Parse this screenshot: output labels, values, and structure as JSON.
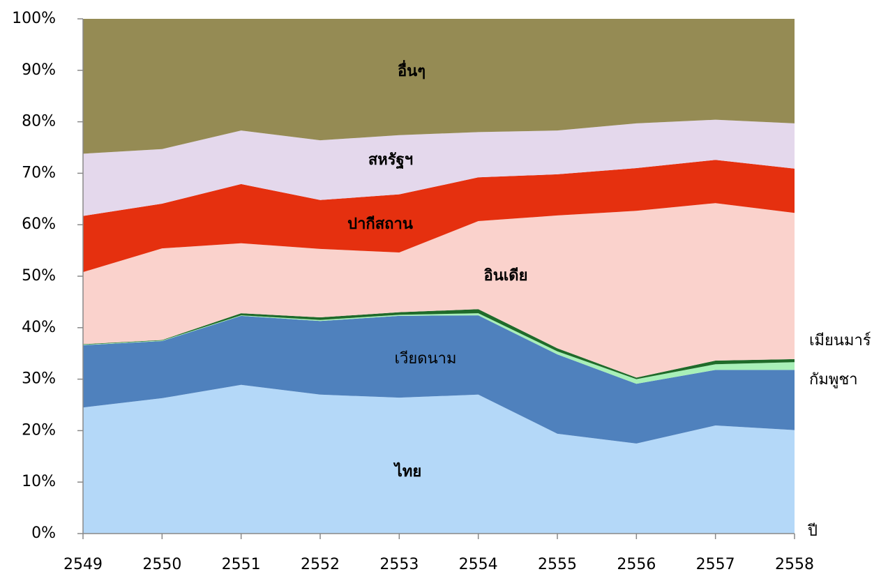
{
  "chart_data": {
    "type": "stacked_area",
    "x_label": "ปี",
    "categories": [
      "2549",
      "2550",
      "2551",
      "2552",
      "2553",
      "2554",
      "2555",
      "2556",
      "2557",
      "2558"
    ],
    "series": [
      {
        "name": "ไทย",
        "color": "#b4d8f8",
        "values": [
          24.5,
          26.3,
          28.9,
          27.0,
          26.4,
          27.0,
          19.4,
          17.5,
          21.0,
          20.1
        ]
      },
      {
        "name": "เวียดนาม",
        "color": "#4f81bd",
        "values": [
          12.1,
          11.1,
          13.4,
          14.3,
          15.9,
          15.4,
          15.4,
          11.6,
          10.8,
          11.7
        ]
      },
      {
        "name": "กัมพูชา",
        "color": "#a8f0b8",
        "values": [
          0.1,
          0.1,
          0.1,
          0.2,
          0.2,
          0.4,
          0.6,
          0.9,
          1.1,
          1.5
        ]
      },
      {
        "name": "เมียนมาร์",
        "color": "#1f6b2a",
        "values": [
          0.1,
          0.1,
          0.4,
          0.5,
          0.5,
          0.8,
          0.6,
          0.3,
          0.7,
          0.6
        ]
      },
      {
        "name": "อินเดีย",
        "color": "#fad2cc",
        "values": [
          14.0,
          17.8,
          13.6,
          13.3,
          11.6,
          17.1,
          25.8,
          32.4,
          30.6,
          28.4
        ]
      },
      {
        "name": "ปากีสถาน",
        "color": "#e5300f",
        "values": [
          10.9,
          8.7,
          11.5,
          9.5,
          11.3,
          8.5,
          8.0,
          8.3,
          8.4,
          8.6
        ]
      },
      {
        "name": "สหรัฐฯ",
        "color": "#e4d8ec",
        "values": [
          12.1,
          10.6,
          10.4,
          11.6,
          11.5,
          8.8,
          8.5,
          8.7,
          7.8,
          8.8
        ]
      },
      {
        "name": "อื่นๆ",
        "color": "#958b54",
        "values": [
          26.2,
          25.3,
          21.7,
          23.6,
          22.6,
          22.0,
          21.7,
          20.3,
          19.6,
          20.3
        ]
      }
    ],
    "ylim": [
      0,
      100
    ],
    "yticks": [
      {
        "value": 0,
        "label": "0%"
      },
      {
        "value": 10,
        "label": "10%"
      },
      {
        "value": 20,
        "label": "20%"
      },
      {
        "value": 30,
        "label": "30%"
      },
      {
        "value": 40,
        "label": "40%"
      },
      {
        "value": 50,
        "label": "50%"
      },
      {
        "value": 60,
        "label": "60%"
      },
      {
        "value": 70,
        "label": "70%"
      },
      {
        "value": 80,
        "label": "80%"
      },
      {
        "value": 90,
        "label": "90%"
      },
      {
        "value": 100,
        "label": "100%"
      }
    ]
  }
}
